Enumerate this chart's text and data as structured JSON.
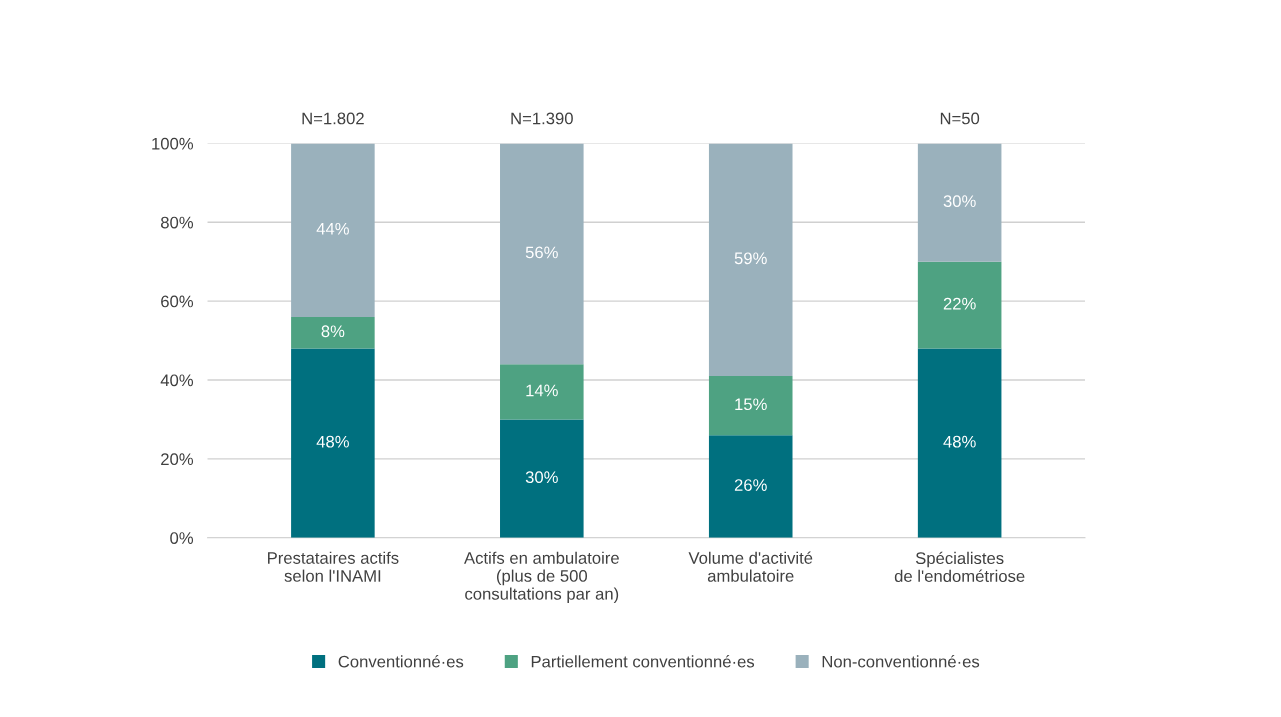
{
  "chart_data": {
    "type": "bar",
    "stacked": true,
    "categories": [
      "Prestataires actifs\nselon l'INAMI",
      "Actifs en ambulatoire\n(plus de 500\nconsultations par an)",
      "Volume d'activité\nambulatoire",
      "Spécialistes\nde l'endométriose"
    ],
    "series": [
      {
        "name": "Conventionné·es",
        "color": "#00707f",
        "values": [
          48,
          30,
          26,
          48
        ],
        "value_labels": [
          "48%",
          "30%",
          "26%",
          "48%"
        ]
      },
      {
        "name": "Partiellement conventionné·es",
        "color": "#4ea282",
        "values": [
          8,
          14,
          15,
          22
        ],
        "value_labels": [
          "8%",
          "14%",
          "15%",
          "22%"
        ]
      },
      {
        "name": "Non-conventionné·es",
        "color": "#9ab1bc",
        "values": [
          44,
          56,
          59,
          30
        ],
        "value_labels": [
          "44%",
          "56%",
          "59%",
          "30%"
        ]
      }
    ],
    "ylim": [
      0,
      100
    ],
    "yticks": [
      {
        "value": 0,
        "label": "0%"
      },
      {
        "value": 20,
        "label": "20%"
      },
      {
        "value": 40,
        "label": "40%"
      },
      {
        "value": 60,
        "label": "60%"
      },
      {
        "value": 80,
        "label": "80%"
      },
      {
        "value": 100,
        "label": "100%"
      }
    ],
    "grid": "y",
    "legend": "bottom",
    "annotations": [
      {
        "text": "N=1.802",
        "x": "Prestataires actifs\nselon l'INAMI",
        "y": 100
      },
      {
        "text": "N=1.390",
        "x": "Actifs en ambulatoire\n(plus de 500\nconsultations par an)",
        "y": 100
      },
      {
        "text": "N=50",
        "x": "Spécialistes\nde l'endométriose",
        "y": 100
      }
    ]
  }
}
